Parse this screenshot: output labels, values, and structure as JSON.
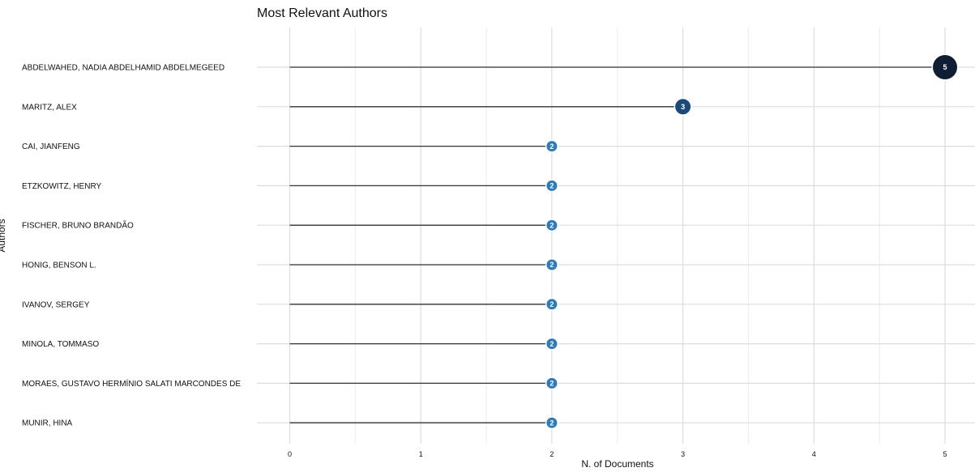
{
  "chart_data": {
    "type": "lollipop",
    "title": "Most Relevant Authors",
    "xlabel": "N. of Documents",
    "ylabel": "Authors",
    "xlim": [
      0,
      5
    ],
    "xticks": [
      0,
      1,
      2,
      3,
      4,
      5
    ],
    "grid": true,
    "categories": [
      "ABDELWAHED, NADIA ABDELHAMID ABDELMEGEED",
      "MARITZ, ALEX",
      "CAI, JIANFENG",
      "ETZKOWITZ, HENRY",
      "FISCHER, BRUNO BRANDÃO",
      "HONIG, BENSON L.",
      "IVANOV, SERGEY",
      "MINOLA, TOMMASO",
      "MORAES, GUSTAVO HERMÍNIO SALATI MARCONDES DE",
      "MUNIR, HINA"
    ],
    "values": [
      5,
      3,
      2,
      2,
      2,
      2,
      2,
      2,
      2,
      2
    ],
    "colors": {
      "low": "#2b7bc0",
      "mid": "#1b4a7a",
      "high": "#0f1e33",
      "grid": "#dddddd",
      "stem": "#333333"
    }
  }
}
